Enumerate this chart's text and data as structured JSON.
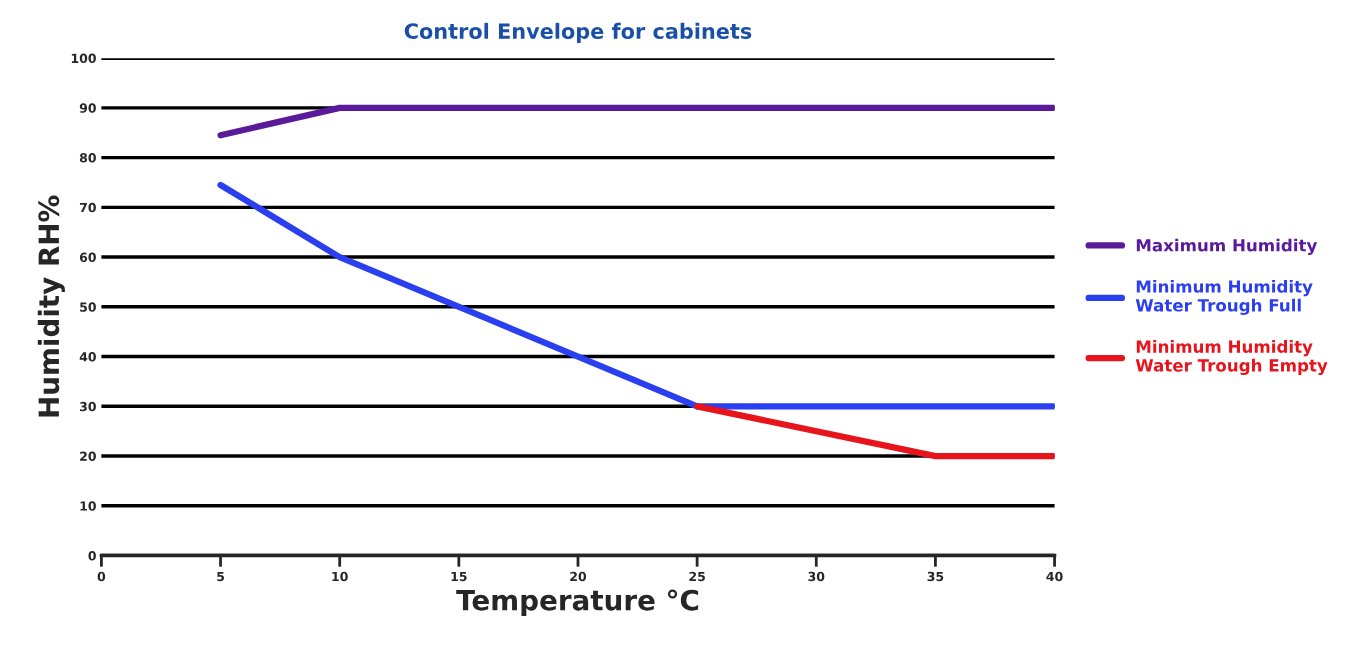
{
  "chart_data": {
    "type": "line",
    "title": "Control Envelope for cabinets",
    "xlabel": "Temperature °C",
    "ylabel": "Humidity RH%",
    "series": [
      {
        "name": "Maximum Humidity",
        "color": "#5a1a9a",
        "x": [
          5,
          10,
          40
        ],
        "values": [
          84.5,
          90,
          90
        ]
      },
      {
        "name": "Minimum Humidity\nWater Trough Full",
        "color": "#2a3ff0",
        "x": [
          5,
          10,
          25,
          40
        ],
        "values": [
          74.5,
          60,
          30,
          30
        ]
      },
      {
        "name": "Minimum Humidity\nWater Trough Empty",
        "color": "#e8141c",
        "x": [
          25,
          35,
          40
        ],
        "values": [
          30,
          20,
          20
        ]
      }
    ],
    "xlim": [
      0,
      40
    ],
    "xticks": [
      0,
      5,
      10,
      15,
      20,
      25,
      30,
      35,
      40
    ],
    "ylim": [
      0,
      100
    ],
    "yticks": [
      0,
      10,
      20,
      30,
      40,
      50,
      60,
      70,
      80,
      90,
      100
    ],
    "grid": "y",
    "legend": "right",
    "marker": "none",
    "line_style": "solid"
  }
}
